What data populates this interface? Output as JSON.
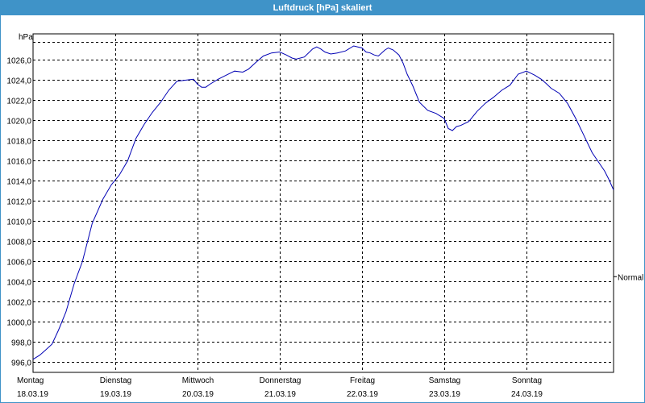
{
  "window": {
    "title": "Luftdruck [hPa] skaliert"
  },
  "chart_data": {
    "type": "line",
    "title": "Luftdruck [hPa] skaliert",
    "ylabel": "hPa",
    "ylim": [
      995.0,
      1028.6
    ],
    "yticks": [
      996,
      998,
      1000,
      1002,
      1004,
      1006,
      1008,
      1010,
      1012,
      1014,
      1016,
      1018,
      1020,
      1022,
      1024,
      1026
    ],
    "ytick_labels": [
      "996,0",
      "998,0",
      "1000,0",
      "1002,0",
      "1004,0",
      "1006,0",
      "1008,0",
      "1010,0",
      "1012,0",
      "1014,0",
      "1016,0",
      "1018,0",
      "1020,0",
      "1022,0",
      "1024,0",
      "1026,0"
    ],
    "xlim": [
      0,
      7.06
    ],
    "x_ticks": [
      {
        "x": 0,
        "day": "Montag",
        "date": "18.03.19"
      },
      {
        "x": 1,
        "day": "Dienstag",
        "date": "19.03.19"
      },
      {
        "x": 2,
        "day": "Mittwoch",
        "date": "20.03.19"
      },
      {
        "x": 3,
        "day": "Donnerstag",
        "date": "21.03.19"
      },
      {
        "x": 4,
        "day": "Freitag",
        "date": "22.03.19"
      },
      {
        "x": 5,
        "day": "Samstag",
        "date": "23.03.19"
      },
      {
        "x": 6,
        "day": "Sonntag",
        "date": "24.03.19"
      }
    ],
    "normal_label": "Normal",
    "normal_value": 1004.5,
    "grid": true,
    "series": [
      {
        "color": "#0000b4",
        "x": [
          0,
          0.08,
          0.15,
          0.23,
          0.31,
          0.4,
          0.5,
          0.6,
          0.72,
          0.85,
          0.95,
          1.05,
          1.15,
          1.25,
          1.35,
          1.45,
          1.55,
          1.65,
          1.75,
          1.85,
          1.95,
          2.0,
          2.05,
          2.1,
          2.15,
          2.25,
          2.35,
          2.45,
          2.55,
          2.62,
          2.7,
          2.8,
          2.9,
          3.0,
          3.08,
          3.15,
          3.2,
          3.3,
          3.4,
          3.45,
          3.5,
          3.55,
          3.62,
          3.7,
          3.8,
          3.9,
          4.0,
          4.05,
          4.1,
          4.15,
          4.2,
          4.28,
          4.32,
          4.38,
          4.45,
          4.5,
          4.55,
          4.62,
          4.7,
          4.8,
          4.9,
          5.0,
          5.05,
          5.1,
          5.15,
          5.2,
          5.3,
          5.4,
          5.5,
          5.6,
          5.7,
          5.8,
          5.9,
          6.0,
          6.05,
          6.1,
          6.18,
          6.25,
          6.3,
          6.4,
          6.5,
          6.6,
          6.7,
          6.8,
          6.9,
          6.95,
          7.0,
          7.06
        ],
        "y": [
          996.3,
          996.7,
          997.2,
          997.8,
          999.2,
          1001.0,
          1003.8,
          1006.0,
          1009.8,
          1012.2,
          1013.6,
          1014.6,
          1016.0,
          1018.2,
          1019.6,
          1020.8,
          1021.8,
          1023.0,
          1023.9,
          1024.0,
          1024.1,
          1023.6,
          1023.3,
          1023.3,
          1023.6,
          1024.1,
          1024.5,
          1024.9,
          1024.8,
          1025.1,
          1025.7,
          1026.4,
          1026.7,
          1026.8,
          1026.5,
          1026.2,
          1026.1,
          1026.3,
          1027.1,
          1027.3,
          1027.1,
          1026.8,
          1026.6,
          1026.7,
          1026.9,
          1027.4,
          1027.2,
          1026.8,
          1026.7,
          1026.5,
          1026.4,
          1027.0,
          1027.2,
          1027.0,
          1026.5,
          1025.7,
          1024.6,
          1023.4,
          1021.8,
          1021.0,
          1020.7,
          1020.2,
          1019.2,
          1019.0,
          1019.4,
          1019.5,
          1019.9,
          1020.9,
          1021.7,
          1022.3,
          1023.0,
          1023.5,
          1024.6,
          1024.9,
          1024.7,
          1024.5,
          1024.1,
          1023.6,
          1023.2,
          1022.7,
          1021.7,
          1020.2,
          1018.5,
          1016.8,
          1015.6,
          1015.0,
          1014.2,
          1013.1
        ]
      }
    ]
  }
}
